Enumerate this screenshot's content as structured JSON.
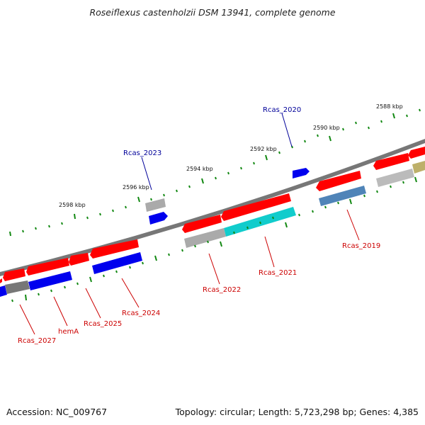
{
  "title": "Roseiflexus castenholzii DSM 13941, complete genome",
  "footer": {
    "accession": "Accession: NC_009767",
    "summary": "Topology: circular; Length: 5,723,298 bp; Genes: 4,385"
  },
  "colors": {
    "background": "#ffffff",
    "backbone": "#777777",
    "tick": "#118811",
    "forward_label": "#000099",
    "reverse_label": "#cc0000",
    "red": "#ff0000",
    "blue": "#0000ee",
    "gray": "#aaaaaa",
    "darkgray": "#777777",
    "cyan": "#11cccc",
    "steelblue": "#4f84b8",
    "olive": "#bdb06a"
  },
  "kbp_labels": [
    "2588 kbp",
    "2590 kbp",
    "2592 kbp",
    "2594 kbp",
    "2596 kbp",
    "2598 kbp"
  ],
  "gene_labels": {
    "Rcas_2020": "Rcas_2020",
    "Rcas_2023": "Rcas_2023",
    "Rcas_2019": "Rcas_2019",
    "Rcas_2021": "Rcas_2021",
    "Rcas_2022": "Rcas_2022",
    "Rcas_2024": "Rcas_2024",
    "Rcas_2025": "Rcas_2025",
    "hemA": "hemA",
    "Rcas_2027": "Rcas_2027"
  }
}
